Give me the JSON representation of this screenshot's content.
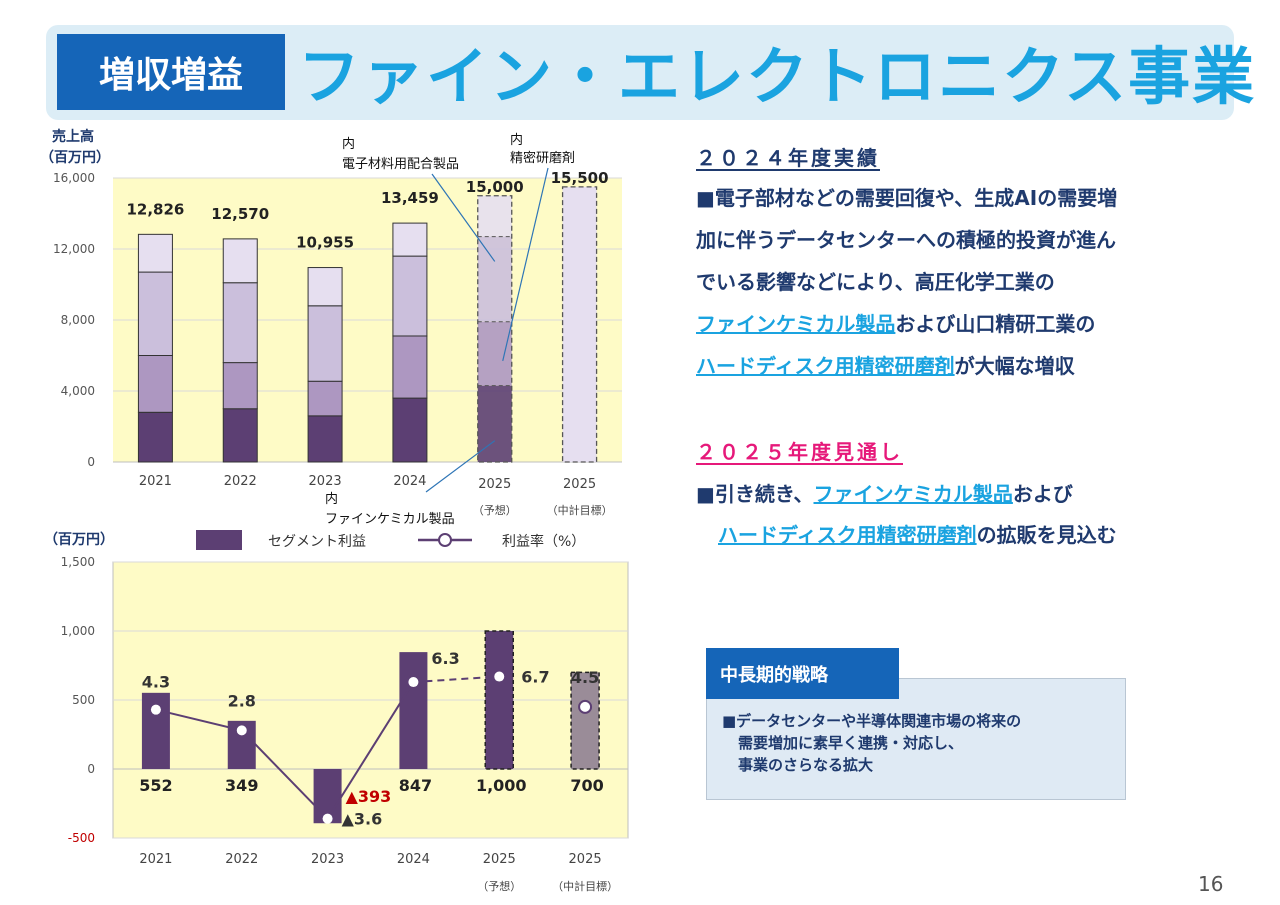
{
  "header": {
    "badge": "増収増益",
    "title": "ファイン・エレクトロニクス事業"
  },
  "colors": {
    "accent": "#1aa3e0",
    "navy": "#1565b8",
    "highlight_magenta": "#e6197a",
    "bar_dark": "#5c3f73",
    "chart_bg": "#fefbc6"
  },
  "chart_data": [
    {
      "type": "bar",
      "stacked": true,
      "ylabel_line1": "売上高",
      "ylabel_line2": "（百万円）",
      "ylim": [
        0,
        16000
      ],
      "yticks": [
        "0",
        "4,000",
        "8,000",
        "12,000",
        "16,000"
      ],
      "categories": [
        "2021",
        "2022",
        "2023",
        "2024",
        "2025",
        "2025"
      ],
      "category_notes": [
        "",
        "",
        "",
        "",
        "（予想）",
        "（中計目標）"
      ],
      "series_values": [
        [
          2800,
          3000,
          2600,
          3600,
          4300,
          null
        ],
        [
          3200,
          2600,
          1950,
          3500,
          3600,
          null
        ],
        [
          4700,
          4500,
          4250,
          4500,
          4800,
          null
        ],
        [
          2126,
          2470,
          2155,
          1859,
          2300,
          null
        ]
      ],
      "totals": [
        12826,
        12570,
        10955,
        13459,
        15000,
        15500
      ],
      "total_labels": [
        "12,826",
        "12,570",
        "10,955",
        "13,459",
        "15,000",
        "15,500"
      ],
      "dashed_bars": [
        4,
        5
      ],
      "callouts": {
        "electronic": [
          "内",
          "電子材料用配合製品"
        ],
        "abrasive": [
          "内",
          "精密研磨剤"
        ],
        "fine_chem": [
          "内",
          "ファインケミカル製品"
        ]
      }
    },
    {
      "type": "bar+line",
      "ylabel": "（百万円）",
      "ylim": [
        -500,
        1500
      ],
      "yticks": [
        "-500",
        "0",
        "500",
        "1,000",
        "1,500"
      ],
      "categories": [
        "2021",
        "2022",
        "2023",
        "2024",
        "2025",
        "2025"
      ],
      "category_notes": [
        "",
        "",
        "",
        "",
        "（予想）",
        "（中計目標）"
      ],
      "legend": {
        "bar": "セグメント利益",
        "line": "利益率（%）"
      },
      "profit_values": [
        552,
        349,
        -393,
        847,
        1000,
        700
      ],
      "profit_labels": [
        "552",
        "349",
        "▲393",
        "847",
        "1,000",
        "700"
      ],
      "margin_values": [
        4.3,
        2.8,
        -3.6,
        6.3,
        6.7,
        4.5
      ],
      "margin_labels": [
        "4.3",
        "2.8",
        "▲3.6",
        "6.3",
        "6.7",
        "4.5"
      ]
    }
  ],
  "results_2024": {
    "heading": "２０２４年度実績",
    "line1": "■電子部材などの需要回復や、生成AIの需要増",
    "line2": "加に伴うデータセンターへの積極的投資が進ん",
    "line3": "でいる影響などにより、高圧化学工業の",
    "line4_link": "ファインケミカル製品",
    "line4_rest": "および山口精研工業の",
    "line5_link": "ハードディスク用精密研磨剤",
    "line5_rest": "が大幅な増収"
  },
  "outlook_2025": {
    "heading": "２０２５年度見通し",
    "line1_pre": "■引き続き、",
    "line1_link": "ファインケミカル製品",
    "line1_post": "および",
    "line2_link": "ハードディスク用精密研磨剤",
    "line2_post": "の拡販を見込む"
  },
  "strategy": {
    "title": "中長期的戦略",
    "line1": "■データセンターや半導体関連市場の将来の",
    "line2": "需要増加に素早く連携・対応し、",
    "line3": "事業のさらなる拡大"
  },
  "page_number": "16"
}
